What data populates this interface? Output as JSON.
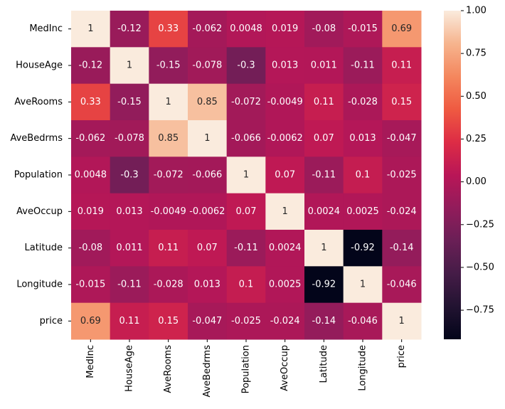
{
  "chart_data": {
    "type": "heatmap",
    "x": [
      "MedInc",
      "HouseAge",
      "AveRooms",
      "AveBedrms",
      "Population",
      "AveOccup",
      "Latitude",
      "Longitude",
      "price"
    ],
    "y": [
      "MedInc",
      "HouseAge",
      "AveRooms",
      "AveBedrms",
      "Population",
      "AveOccup",
      "Latitude",
      "Longitude",
      "price"
    ],
    "values": [
      [
        1,
        -0.12,
        0.33,
        -0.062,
        0.0048,
        0.019,
        -0.08,
        -0.015,
        0.69
      ],
      [
        -0.12,
        1,
        -0.15,
        -0.078,
        -0.3,
        0.013,
        0.011,
        -0.11,
        0.11
      ],
      [
        0.33,
        -0.15,
        1,
        0.85,
        -0.072,
        -0.0049,
        0.11,
        -0.028,
        0.15
      ],
      [
        -0.062,
        -0.078,
        0.85,
        1,
        -0.066,
        -0.0062,
        0.07,
        0.013,
        -0.047
      ],
      [
        0.0048,
        -0.3,
        -0.072,
        -0.066,
        1,
        0.07,
        -0.11,
        0.1,
        -0.025
      ],
      [
        0.019,
        0.013,
        -0.0049,
        -0.0062,
        0.07,
        1,
        0.0024,
        0.0025,
        -0.024
      ],
      [
        -0.08,
        0.011,
        0.11,
        0.07,
        -0.11,
        0.0024,
        1,
        -0.92,
        -0.14
      ],
      [
        -0.015,
        -0.11,
        -0.028,
        0.013,
        0.1,
        0.0025,
        -0.92,
        1,
        -0.046
      ],
      [
        0.69,
        0.11,
        0.15,
        -0.047,
        -0.025,
        -0.024,
        -0.14,
        -0.046,
        1
      ]
    ],
    "clim": [
      -0.92,
      1
    ],
    "colorscale": [
      "#03051a",
      "#221331",
      "#451c47",
      "#6a1f56",
      "#921c5b",
      "#b91657",
      "#dd2c45",
      "#ef5a41",
      "#f4875e",
      "#f6b48e",
      "#faebdd"
    ],
    "colorbar_ticks": [
      {
        "value": 1,
        "label": "1.00"
      },
      {
        "value": 0.75,
        "label": "0.75"
      },
      {
        "value": 0.5,
        "label": "0.50"
      },
      {
        "value": 0.25,
        "label": "0.25"
      },
      {
        "value": 0,
        "label": "0.00"
      },
      {
        "value": -0.25,
        "label": "−0.25"
      },
      {
        "value": -0.5,
        "label": "−0.50"
      },
      {
        "value": -0.75,
        "label": "−0.75"
      }
    ]
  }
}
